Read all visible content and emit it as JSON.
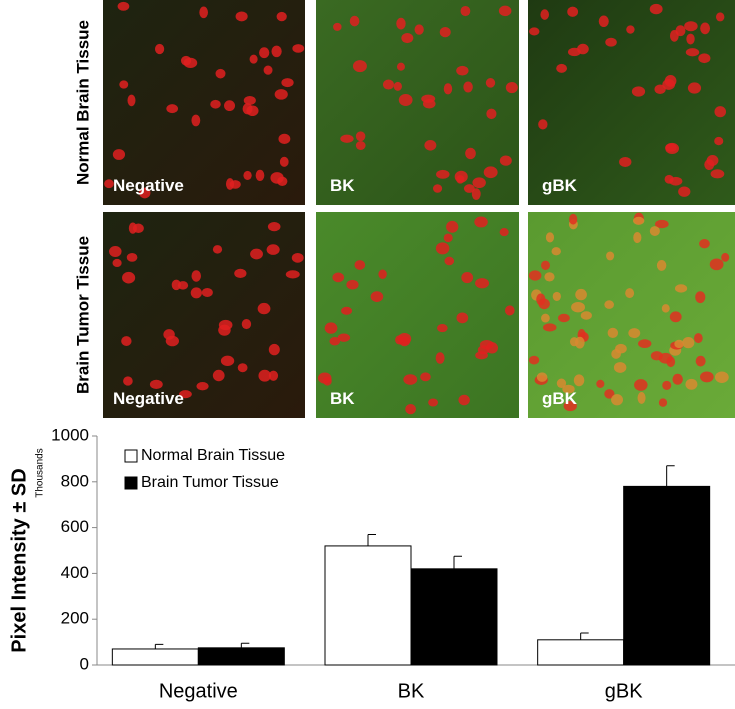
{
  "figure": {
    "rows": [
      {
        "label": "Normal Brain Tissue",
        "panels": [
          "Negative",
          "BK",
          "gBK"
        ]
      },
      {
        "label": "Brain Tumor Tissue",
        "panels": [
          "Negative",
          "BK",
          "gBK"
        ]
      }
    ]
  },
  "chart_data": {
    "type": "bar",
    "y_label": "Pixel Intensity ± SD",
    "y_unit": "Thousands",
    "categories": [
      "Negative",
      "BK",
      "gBK"
    ],
    "series": [
      {
        "name": "Normal Brain Tissue",
        "color": "#ffffff",
        "values": [
          70,
          520,
          110
        ],
        "errors": [
          20,
          50,
          30
        ]
      },
      {
        "name": "Brain Tumor Tissue",
        "color": "#000000",
        "values": [
          75,
          420,
          780
        ],
        "errors": [
          20,
          55,
          90
        ]
      }
    ],
    "ylim": [
      0,
      1000
    ],
    "yticks": [
      0,
      200,
      400,
      600,
      800,
      1000
    ],
    "legend": "upper-left"
  }
}
